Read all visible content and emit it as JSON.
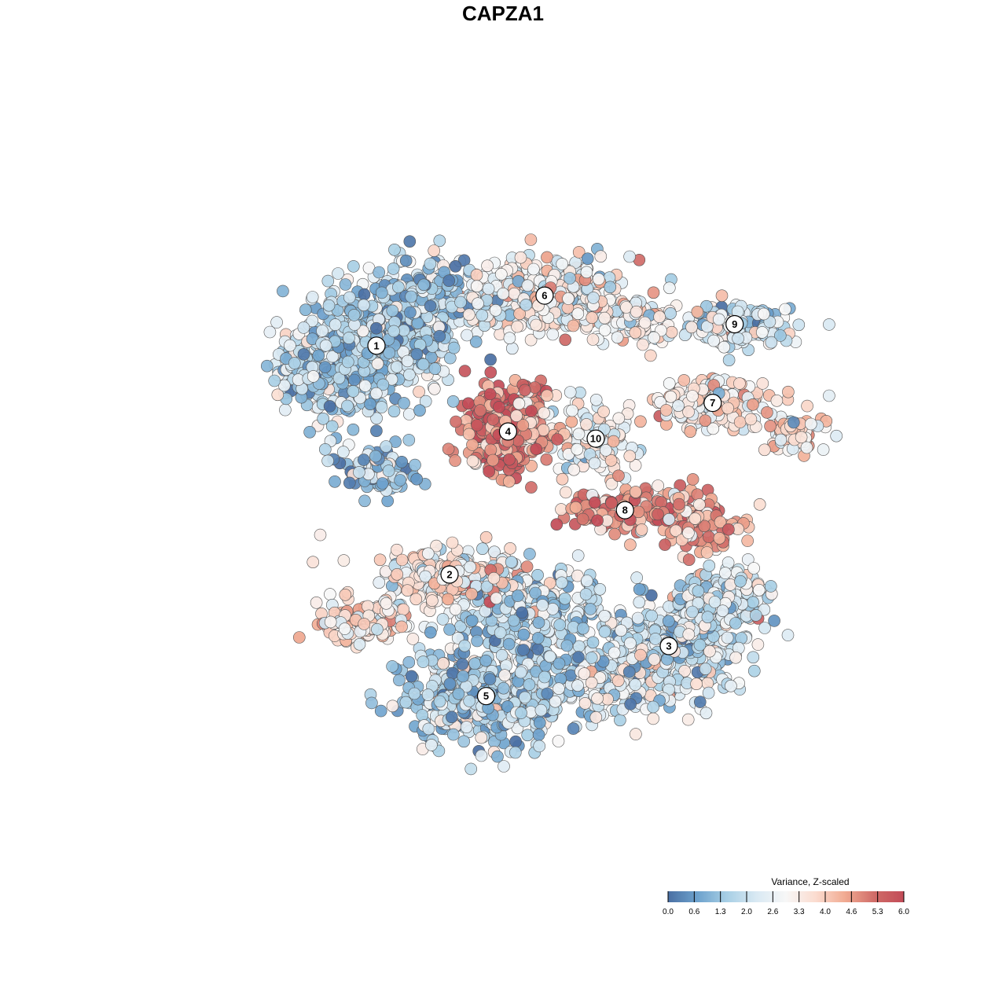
{
  "chart_data": {
    "type": "scatter",
    "title": "CAPZA1",
    "xlabel": "",
    "ylabel": "",
    "grid": false,
    "legend": {
      "title": "Variance, Z-scaled",
      "placement": "bottom-right",
      "ticks": [
        "0.0",
        "0.6",
        "1.3",
        "2.0",
        "2.6",
        "3.3",
        "4.0",
        "4.6",
        "5.3",
        "6.0"
      ],
      "range": [
        0,
        6
      ],
      "colors": [
        "#4a6fa3",
        "#6da2cd",
        "#a8cfe5",
        "#d9e9f3",
        "#f7f7f7",
        "#fbdcd0",
        "#f1ab92",
        "#d06c68",
        "#c24b57"
      ]
    },
    "clusters": [
      {
        "id": "1",
        "x": 0.3,
        "y": 0.72,
        "value": 1.6
      },
      {
        "id": "2",
        "x": 0.4,
        "y": 0.4,
        "value": 3.4
      },
      {
        "id": "3",
        "x": 0.7,
        "y": 0.3,
        "value": 2.2
      },
      {
        "id": "4",
        "x": 0.48,
        "y": 0.6,
        "value": 5.0
      },
      {
        "id": "5",
        "x": 0.45,
        "y": 0.23,
        "value": 1.8
      },
      {
        "id": "6",
        "x": 0.53,
        "y": 0.79,
        "value": 3.0
      },
      {
        "id": "7",
        "x": 0.76,
        "y": 0.64,
        "value": 3.3
      },
      {
        "id": "8",
        "x": 0.64,
        "y": 0.49,
        "value": 4.6
      },
      {
        "id": "9",
        "x": 0.79,
        "y": 0.75,
        "value": 2.0
      },
      {
        "id": "10",
        "x": 0.6,
        "y": 0.59,
        "value": 2.8
      }
    ]
  }
}
